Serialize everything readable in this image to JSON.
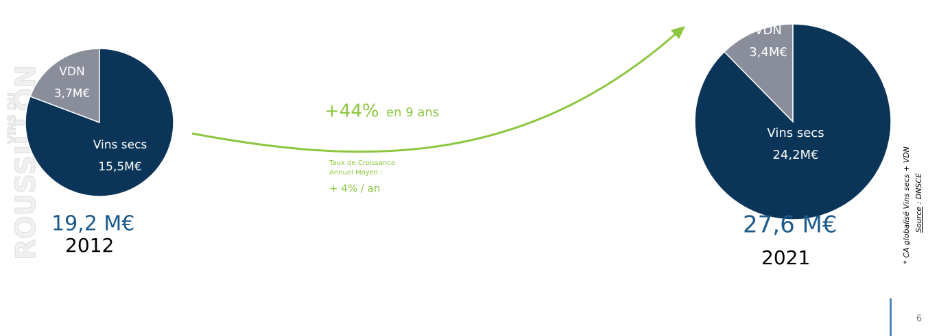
{
  "chart_data": [
    {
      "type": "pie",
      "categories": [
        "VDN",
        "Vins secs"
      ],
      "values": [
        3.7,
        15.5
      ],
      "value_labels": [
        "3,7M€",
        "15,5M€"
      ],
      "colors": [
        "#8a8e9a",
        "#0b3558"
      ],
      "total_label": "19,2 M€",
      "year": "2012"
    },
    {
      "type": "pie",
      "categories": [
        "VDN",
        "Vins secs"
      ],
      "values": [
        3.4,
        24.2
      ],
      "value_labels": [
        "3,4M€",
        "24,2M€"
      ],
      "colors": [
        "#8a8e9a",
        "#0b3558"
      ],
      "total_label": "27,6 M€",
      "year": "2021"
    }
  ],
  "growth": {
    "value_label": "+44%",
    "period": "en 9 ans",
    "cagr_title": [
      "Taux de Croissance",
      "Annuel Moyen :"
    ],
    "cagr": "+ 4% / an"
  },
  "watermark": [
    "VINS DU",
    "ROUSSILLON"
  ],
  "footnote": "* CA globalisé Vins secs + VDN",
  "source": {
    "label": "Source",
    "text": " : DNSCE"
  },
  "page_number": "6"
}
